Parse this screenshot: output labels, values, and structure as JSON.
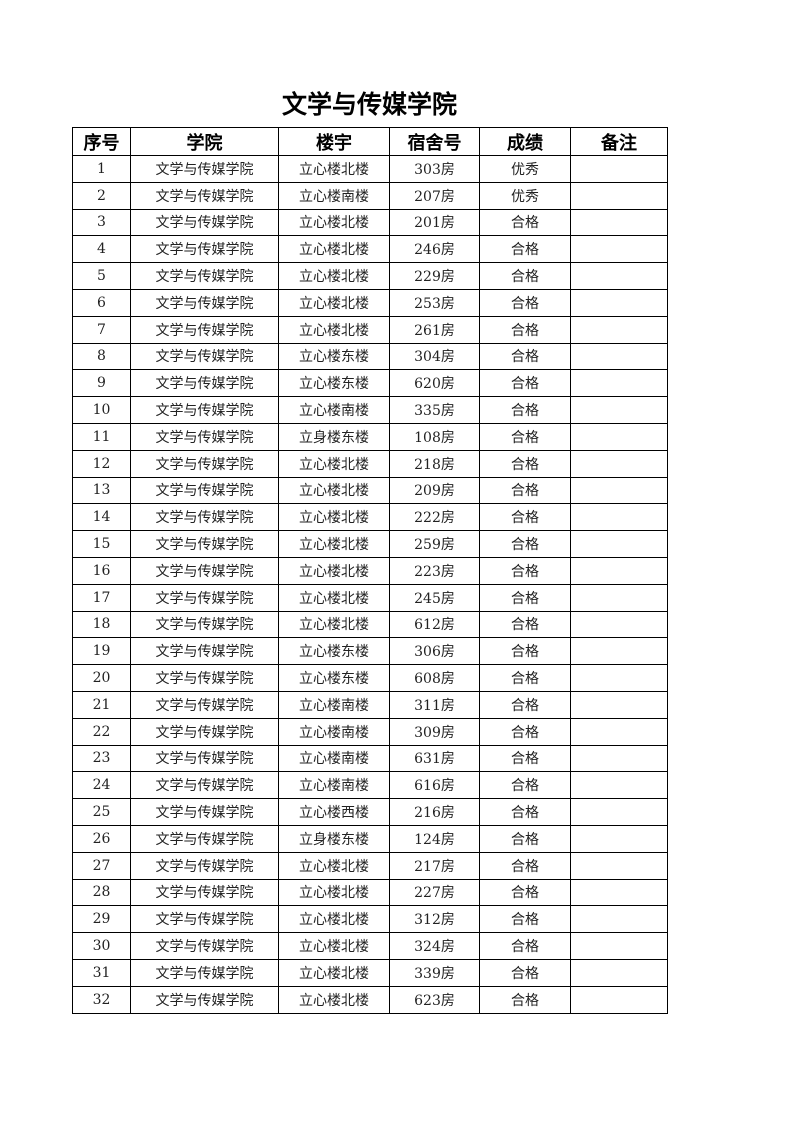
{
  "title": "文学与传媒学院",
  "table": {
    "headers": [
      "序号",
      "学院",
      "楼宇",
      "宿舍号",
      "成绩",
      "备注"
    ],
    "rows": [
      [
        "1",
        "文学与传媒学院",
        "立心楼北楼",
        "303房",
        "优秀",
        ""
      ],
      [
        "2",
        "文学与传媒学院",
        "立心楼南楼",
        "207房",
        "优秀",
        ""
      ],
      [
        "3",
        "文学与传媒学院",
        "立心楼北楼",
        "201房",
        "合格",
        ""
      ],
      [
        "4",
        "文学与传媒学院",
        "立心楼北楼",
        "246房",
        "合格",
        ""
      ],
      [
        "5",
        "文学与传媒学院",
        "立心楼北楼",
        "229房",
        "合格",
        ""
      ],
      [
        "6",
        "文学与传媒学院",
        "立心楼北楼",
        "253房",
        "合格",
        ""
      ],
      [
        "7",
        "文学与传媒学院",
        "立心楼北楼",
        "261房",
        "合格",
        ""
      ],
      [
        "8",
        "文学与传媒学院",
        "立心楼东楼",
        "304房",
        "合格",
        ""
      ],
      [
        "9",
        "文学与传媒学院",
        "立心楼东楼",
        "620房",
        "合格",
        ""
      ],
      [
        "10",
        "文学与传媒学院",
        "立心楼南楼",
        "335房",
        "合格",
        ""
      ],
      [
        "11",
        "文学与传媒学院",
        "立身楼东楼",
        "108房",
        "合格",
        ""
      ],
      [
        "12",
        "文学与传媒学院",
        "立心楼北楼",
        "218房",
        "合格",
        ""
      ],
      [
        "13",
        "文学与传媒学院",
        "立心楼北楼",
        "209房",
        "合格",
        ""
      ],
      [
        "14",
        "文学与传媒学院",
        "立心楼北楼",
        "222房",
        "合格",
        ""
      ],
      [
        "15",
        "文学与传媒学院",
        "立心楼北楼",
        "259房",
        "合格",
        ""
      ],
      [
        "16",
        "文学与传媒学院",
        "立心楼北楼",
        "223房",
        "合格",
        ""
      ],
      [
        "17",
        "文学与传媒学院",
        "立心楼北楼",
        "245房",
        "合格",
        ""
      ],
      [
        "18",
        "文学与传媒学院",
        "立心楼北楼",
        "612房",
        "合格",
        ""
      ],
      [
        "19",
        "文学与传媒学院",
        "立心楼东楼",
        "306房",
        "合格",
        ""
      ],
      [
        "20",
        "文学与传媒学院",
        "立心楼东楼",
        "608房",
        "合格",
        ""
      ],
      [
        "21",
        "文学与传媒学院",
        "立心楼南楼",
        "311房",
        "合格",
        ""
      ],
      [
        "22",
        "文学与传媒学院",
        "立心楼南楼",
        "309房",
        "合格",
        ""
      ],
      [
        "23",
        "文学与传媒学院",
        "立心楼南楼",
        "631房",
        "合格",
        ""
      ],
      [
        "24",
        "文学与传媒学院",
        "立心楼南楼",
        "616房",
        "合格",
        ""
      ],
      [
        "25",
        "文学与传媒学院",
        "立心楼西楼",
        "216房",
        "合格",
        ""
      ],
      [
        "26",
        "文学与传媒学院",
        "立身楼东楼",
        "124房",
        "合格",
        ""
      ],
      [
        "27",
        "文学与传媒学院",
        "立心楼北楼",
        "217房",
        "合格",
        ""
      ],
      [
        "28",
        "文学与传媒学院",
        "立心楼北楼",
        "227房",
        "合格",
        ""
      ],
      [
        "29",
        "文学与传媒学院",
        "立心楼北楼",
        "312房",
        "合格",
        ""
      ],
      [
        "30",
        "文学与传媒学院",
        "立心楼北楼",
        "324房",
        "合格",
        ""
      ],
      [
        "31",
        "文学与传媒学院",
        "立心楼北楼",
        "339房",
        "合格",
        ""
      ],
      [
        "32",
        "文学与传媒学院",
        "立心楼北楼",
        "623房",
        "合格",
        ""
      ]
    ]
  }
}
